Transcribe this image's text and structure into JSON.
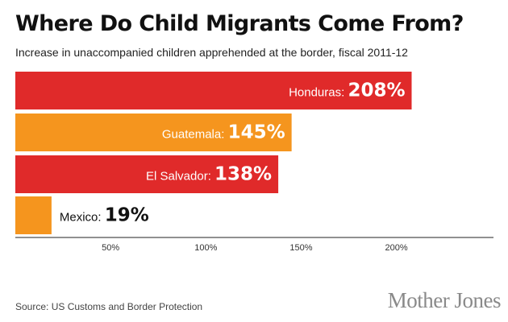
{
  "header": {
    "title": "Where Do Child Migrants Come From?",
    "subtitle": "Increase in unaccompanied children apprehended at the border, fiscal 2011-12"
  },
  "chart_data": {
    "type": "bar",
    "orientation": "horizontal",
    "categories": [
      "Honduras",
      "Guatemala",
      "El Salvador",
      "Mexico"
    ],
    "values": [
      208,
      145,
      138,
      19
    ],
    "value_labels": [
      "208%",
      "145%",
      "138%",
      "19%"
    ],
    "bar_colors": [
      "#e02a2a",
      "#f5951e",
      "#e02a2a",
      "#f5951e"
    ],
    "x_ticks": [
      50,
      100,
      150,
      200
    ],
    "x_tick_labels": [
      "50%",
      "100%",
      "150%",
      "200%"
    ],
    "xlim": [
      0,
      250
    ],
    "grid": false,
    "legend": "none"
  },
  "footer": {
    "source": "Source: US Customs and Border Protection",
    "brand": "Mother Jones"
  }
}
